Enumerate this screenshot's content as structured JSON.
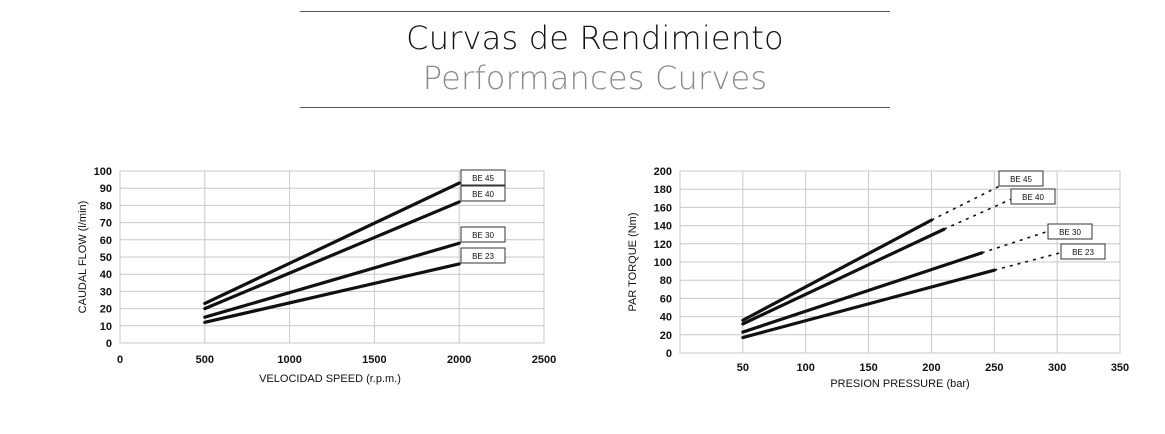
{
  "header": {
    "title": "Curvas de Rendimiento",
    "subtitle": "Performances Curves"
  },
  "chart_data": [
    {
      "type": "line",
      "xlabel": "VELOCIDAD SPEED (r.p.m.)",
      "ylabel": "CAUDAL FLOW (l/min)",
      "xlim": [
        0,
        2500
      ],
      "ylim": [
        0,
        100
      ],
      "xticks": [
        0,
        500,
        1000,
        1500,
        2000,
        2500
      ],
      "yticks": [
        0,
        10,
        20,
        30,
        40,
        50,
        60,
        70,
        80,
        90,
        100
      ],
      "grid": true,
      "series": [
        {
          "name": "BE 45",
          "x": [
            500,
            2000
          ],
          "y": [
            23,
            93
          ]
        },
        {
          "name": "BE 40",
          "x": [
            500,
            2000
          ],
          "y": [
            20,
            82
          ]
        },
        {
          "name": "BE 30",
          "x": [
            500,
            2000
          ],
          "y": [
            15,
            58
          ]
        },
        {
          "name": "BE 23",
          "x": [
            500,
            2000
          ],
          "y": [
            12,
            46
          ]
        }
      ]
    },
    {
      "type": "line",
      "xlabel": "PRESION PRESSURE (bar)",
      "ylabel": "PAR TORQUE (Nm)",
      "xlim": [
        0,
        350
      ],
      "ylim": [
        0,
        200
      ],
      "xticks": [
        50,
        100,
        150,
        200,
        250,
        300,
        350
      ],
      "yticks": [
        0,
        20,
        40,
        60,
        80,
        100,
        120,
        140,
        160,
        180,
        200
      ],
      "grid": true,
      "series": [
        {
          "name": "BE 45",
          "x": [
            50,
            200
          ],
          "y": [
            36,
            146
          ],
          "x_dashed": [
            200,
            255
          ],
          "y_dashed": [
            146,
            184
          ]
        },
        {
          "name": "BE 40",
          "x": [
            50,
            210
          ],
          "y": [
            32,
            136
          ],
          "x_dashed": [
            210,
            265
          ],
          "y_dashed": [
            136,
            170
          ]
        },
        {
          "name": "BE 30",
          "x": [
            50,
            240
          ],
          "y": [
            23,
            110
          ],
          "x_dashed": [
            240,
            300
          ],
          "y_dashed": [
            110,
            137
          ]
        },
        {
          "name": "BE 23",
          "x": [
            50,
            250
          ],
          "y": [
            17,
            91
          ],
          "x_dashed": [
            250,
            305
          ],
          "y_dashed": [
            91,
            111
          ]
        }
      ]
    }
  ]
}
